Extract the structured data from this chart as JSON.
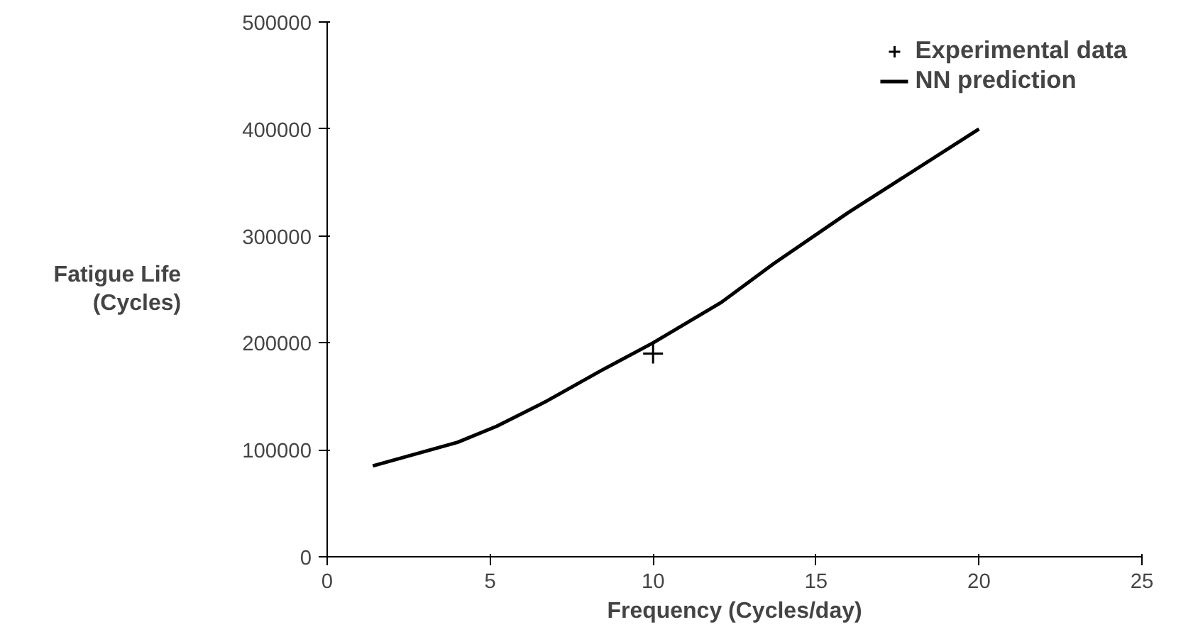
{
  "chart_data": {
    "type": "line",
    "xlabel": "Frequency (Cycles/day)",
    "ylabel": "Fatigue Life\n(Cycles)",
    "xlim": [
      0,
      25
    ],
    "xticks": [
      0,
      5,
      10,
      15,
      20,
      25
    ],
    "ylim": [
      0,
      500000
    ],
    "yticks": [
      0,
      100000,
      200000,
      300000,
      400000,
      500000
    ],
    "grid": false,
    "legend": "top right",
    "series": [
      {
        "name": "Experimental data",
        "type": "scatter",
        "marker": "cross",
        "color": "#000000",
        "x": [
          10
        ],
        "values": [
          190000
        ]
      },
      {
        "name": "NN prediction",
        "marker": "none",
        "color": "#000000",
        "x": [
          1.4,
          4,
          5.2,
          6.7,
          8.4,
          10,
          12.1,
          13.7,
          16,
          20
        ],
        "values": [
          85000,
          107000,
          122000,
          145000,
          174000,
          200000,
          238000,
          274000,
          322000,
          400000
        ]
      }
    ]
  }
}
